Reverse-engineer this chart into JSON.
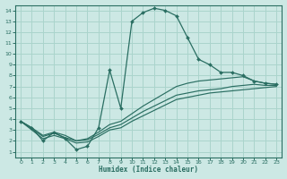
{
  "xlabel": "Humidex (Indice chaleur)",
  "bg_color": "#cce8e4",
  "grid_color": "#aad4cc",
  "line_color": "#2a6e62",
  "xlim": [
    -0.5,
    23.5
  ],
  "ylim": [
    0.5,
    14.5
  ],
  "xticks": [
    0,
    1,
    2,
    3,
    4,
    5,
    6,
    7,
    8,
    9,
    10,
    11,
    12,
    13,
    14,
    15,
    16,
    17,
    18,
    19,
    20,
    21,
    22,
    23
  ],
  "yticks": [
    1,
    2,
    3,
    4,
    5,
    6,
    7,
    8,
    9,
    10,
    11,
    12,
    13,
    14
  ],
  "line1_x": [
    0,
    1,
    2,
    3,
    4,
    5,
    6,
    7,
    8,
    9,
    10,
    11,
    12,
    13,
    14,
    15,
    16,
    17,
    18,
    19,
    20,
    21,
    22,
    23
  ],
  "line1_y": [
    3.8,
    3.2,
    2.0,
    2.8,
    2.2,
    1.2,
    1.5,
    3.2,
    8.5,
    5.0,
    13.0,
    13.8,
    14.2,
    14.0,
    13.5,
    11.5,
    9.5,
    9.0,
    8.3,
    8.3,
    8.0,
    7.5,
    7.3,
    7.2
  ],
  "line2_x": [
    0,
    1,
    2,
    3,
    4,
    5,
    6,
    7,
    8,
    9,
    10,
    11,
    12,
    13,
    14,
    15,
    16,
    17,
    18,
    19,
    20,
    21,
    22,
    23
  ],
  "line2_y": [
    3.8,
    3.2,
    2.5,
    2.8,
    2.5,
    2.0,
    2.2,
    2.8,
    3.5,
    3.8,
    4.5,
    5.2,
    5.8,
    6.4,
    7.0,
    7.3,
    7.5,
    7.6,
    7.7,
    7.8,
    7.9,
    7.5,
    7.3,
    7.2
  ],
  "line3_x": [
    0,
    1,
    2,
    3,
    4,
    5,
    6,
    7,
    8,
    9,
    10,
    11,
    12,
    13,
    14,
    15,
    16,
    17,
    18,
    19,
    20,
    21,
    22,
    23
  ],
  "line3_y": [
    3.8,
    3.0,
    2.2,
    2.5,
    2.2,
    1.8,
    1.9,
    2.4,
    3.0,
    3.2,
    3.8,
    4.3,
    4.8,
    5.3,
    5.8,
    6.0,
    6.2,
    6.4,
    6.5,
    6.6,
    6.7,
    6.8,
    6.9,
    7.0
  ],
  "line4_x": [
    0,
    1,
    2,
    3,
    4,
    5,
    6,
    7,
    8,
    9,
    10,
    11,
    12,
    13,
    14,
    15,
    16,
    17,
    18,
    19,
    20,
    21,
    22,
    23
  ],
  "line4_y": [
    3.8,
    3.1,
    2.4,
    2.7,
    2.3,
    2.0,
    2.1,
    2.6,
    3.2,
    3.5,
    4.1,
    4.7,
    5.2,
    5.7,
    6.2,
    6.4,
    6.6,
    6.7,
    6.8,
    7.0,
    7.1,
    7.2,
    7.1,
    7.1
  ]
}
